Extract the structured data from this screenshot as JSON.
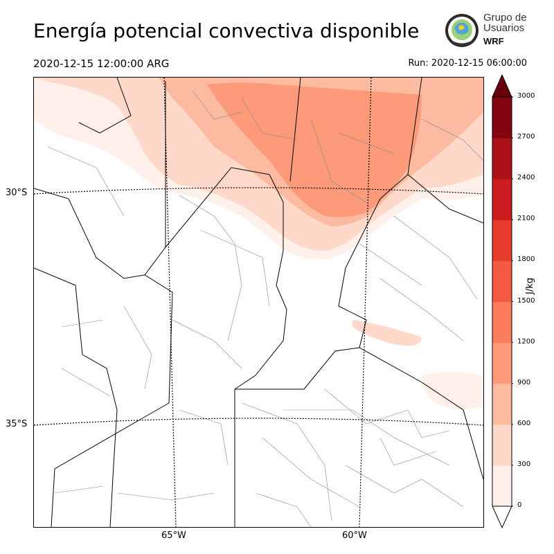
{
  "header": {
    "title": "Energía potencial convectiva disponible",
    "valid_time": "2020-12-15 12:00:00 ARG",
    "run": "Run: 2020-12-15 06:00:00"
  },
  "logo": {
    "line1": "Grupo de",
    "line2": "Usuarios",
    "line3": "WRF"
  },
  "map": {
    "latitude_labels": [
      "30°S",
      "35°S"
    ],
    "longitude_labels": [
      "65°W",
      "60°W"
    ]
  },
  "colorbar": {
    "label": "J/kg",
    "ticks": [
      "0",
      "300",
      "600",
      "900",
      "1200",
      "1500",
      "1800",
      "2100",
      "2400",
      "2700",
      "3000"
    ],
    "colors": [
      "#fff0eb",
      "#fed8c9",
      "#fcbba0",
      "#fc9a7a",
      "#fb7b5c",
      "#f45a42",
      "#e63a2e",
      "#cb1c1f",
      "#ab1117",
      "#82040f"
    ],
    "extend_color": "#67000d"
  }
}
